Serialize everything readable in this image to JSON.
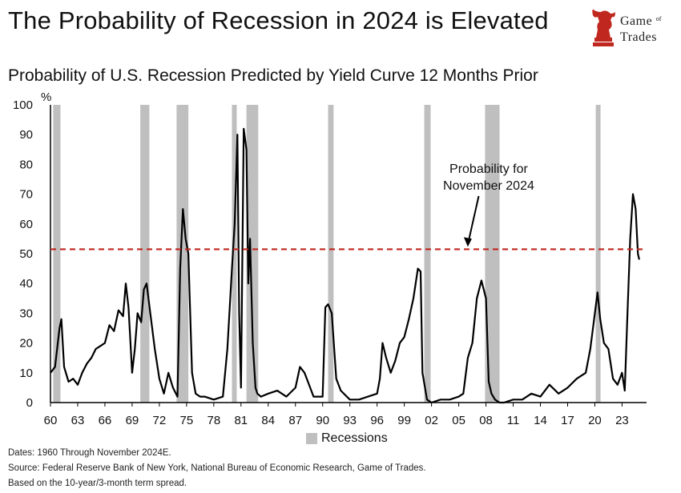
{
  "header": {
    "title": "The Probability of Recession in 2024 is Elevated",
    "logo_line1": "Game",
    "logo_of": "of",
    "logo_line2": "Trades"
  },
  "colors": {
    "line": "#000000",
    "recession": "#bfbfbf",
    "threshold": "#c0271e"
  },
  "chart_data": {
    "type": "line",
    "title": "Probability of U.S. Recession Predicted by Yield Curve 12 Months Prior",
    "ylabel": "%",
    "ylim": [
      0,
      100
    ],
    "xlim": [
      1960,
      2025.7
    ],
    "yticks": [
      "0",
      "10",
      "20",
      "30",
      "40",
      "50",
      "60",
      "70",
      "80",
      "90",
      "100"
    ],
    "xtick_values": [
      1960,
      1963,
      1966,
      1969,
      1972,
      1975,
      1978,
      1981,
      1984,
      1987,
      1990,
      1993,
      1996,
      1999,
      2002,
      2005,
      2008,
      2011,
      2014,
      2017,
      2020,
      2023
    ],
    "xtick_labels": [
      "60",
      "63",
      "66",
      "69",
      "72",
      "75",
      "78",
      "81",
      "84",
      "87",
      "90",
      "93",
      "96",
      "99",
      "02",
      "05",
      "08",
      "11",
      "14",
      "17",
      "20",
      "23"
    ],
    "grid": false,
    "series": [
      {
        "x": [
          1960.0,
          1960.5,
          1961.0,
          1961.2,
          1961.5,
          1962.0,
          1962.5,
          1963.0,
          1963.5,
          1964.0,
          1964.5,
          1965.0,
          1965.5,
          1966.0,
          1966.5,
          1967.0,
          1967.5,
          1968.0,
          1968.3,
          1968.6,
          1969.0,
          1969.3,
          1969.6,
          1970.0,
          1970.3,
          1970.6,
          1971.0,
          1971.5,
          1972.0,
          1972.5,
          1973.0,
          1973.5,
          1974.0,
          1974.3,
          1974.6,
          1974.9,
          1975.2,
          1975.6,
          1976.0,
          1976.5,
          1977.0,
          1978.0,
          1979.0,
          1979.5,
          1980.0,
          1980.3,
          1980.6,
          1980.8,
          1981.0,
          1981.3,
          1981.6,
          1981.8,
          1982.0,
          1982.3,
          1982.6,
          1982.8,
          1983.2,
          1984.0,
          1985.0,
          1986.0,
          1987.0,
          1987.5,
          1988.0,
          1989.0,
          1990.0,
          1990.3,
          1990.6,
          1991.0,
          1991.5,
          1992.0,
          1993.0,
          1994.0,
          1995.0,
          1996.0,
          1996.3,
          1996.6,
          1997.0,
          1997.5,
          1998.0,
          1998.5,
          1999.0,
          1999.5,
          2000.0,
          2000.5,
          2000.8,
          2001.0,
          2001.5,
          2002.0,
          2003.0,
          2004.0,
          2005.0,
          2005.5,
          2006.0,
          2006.5,
          2007.0,
          2007.5,
          2008.0,
          2008.3,
          2008.6,
          2009.0,
          2009.5,
          2010.0,
          2011.0,
          2012.0,
          2013.0,
          2014.0,
          2015.0,
          2016.0,
          2017.0,
          2018.0,
          2019.0,
          2019.5,
          2020.0,
          2020.3,
          2020.6,
          2021.0,
          2021.5,
          2022.0,
          2022.5,
          2023.0,
          2023.3,
          2023.6,
          2023.9,
          2024.2,
          2024.5,
          2024.75,
          2024.9
        ],
        "y": [
          10,
          12,
          25,
          28,
          12,
          7,
          8,
          6,
          10,
          13,
          15,
          18,
          19,
          20,
          26,
          24,
          31,
          29,
          40,
          32,
          10,
          18,
          30,
          27,
          38,
          40,
          30,
          18,
          8,
          3,
          10,
          5,
          2,
          45,
          65,
          55,
          50,
          10,
          3,
          2,
          2,
          1,
          2,
          18,
          45,
          60,
          90,
          30,
          5,
          92,
          85,
          40,
          55,
          20,
          5,
          3,
          2,
          3,
          4,
          2,
          5,
          12,
          10,
          2,
          2,
          32,
          33,
          30,
          8,
          4,
          1,
          1,
          2,
          3,
          8,
          20,
          15,
          10,
          14,
          20,
          22,
          28,
          35,
          45,
          44,
          10,
          1,
          0,
          1,
          1,
          2,
          3,
          15,
          20,
          35,
          41,
          35,
          7,
          3,
          1,
          0,
          0,
          1,
          1,
          3,
          2,
          6,
          3,
          5,
          8,
          10,
          18,
          30,
          37,
          28,
          20,
          18,
          8,
          6,
          10,
          4,
          30,
          55,
          70,
          65,
          50,
          48
        ]
      }
    ],
    "recessions": [
      [
        1960.3,
        1961.1
      ],
      [
        1969.9,
        1970.9
      ],
      [
        1973.9,
        1975.2
      ],
      [
        1980.0,
        1980.5
      ],
      [
        1981.6,
        1982.9
      ],
      [
        1990.6,
        1991.2
      ],
      [
        2001.2,
        2001.9
      ],
      [
        2007.9,
        2009.5
      ],
      [
        2020.1,
        2020.4
      ]
    ],
    "threshold": 51.5,
    "annotation_line1": "Probability for",
    "annotation_line2": "November 2024",
    "legend_label": "Recessions"
  },
  "footnotes": [
    "Dates: 1960 Through November 2024E.",
    "Source: Federal Reserve Bank of New York, National Bureau of Economic Research, Game of Trades.",
    "Based on the 10-year/3-month term spread."
  ]
}
